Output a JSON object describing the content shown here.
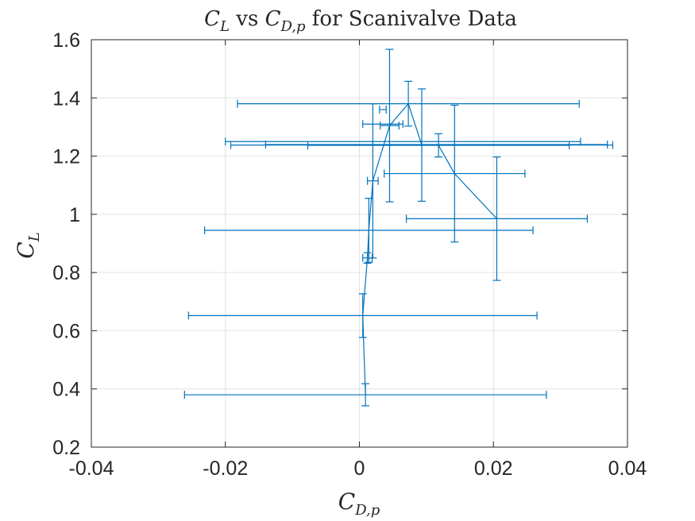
{
  "chart_data": {
    "type": "scatter",
    "title": {
      "var": "C",
      "var_sub": "L",
      "mid": " vs ",
      "var2": "C",
      "var2_sub": "D,p",
      "rest": " for Scanivalve Data"
    },
    "xlabel": {
      "var": "C",
      "sub": "D,p"
    },
    "ylabel": {
      "var": "C",
      "sub": "L"
    },
    "xlim": [
      -0.04,
      0.04
    ],
    "ylim": [
      0.2,
      1.6
    ],
    "xticks": [
      -0.04,
      -0.02,
      0,
      0.02,
      0.04
    ],
    "xtick_labels": [
      "-0.04",
      "-0.02",
      "0",
      "0.02",
      "0.04"
    ],
    "yticks": [
      0.2,
      0.4,
      0.6,
      0.8,
      1.0,
      1.2,
      1.4,
      1.6
    ],
    "ytick_labels": [
      "0.2",
      "0.4",
      "0.6",
      "0.8",
      "1",
      "1.2",
      "1.4",
      "1.6"
    ],
    "grid": true,
    "line_color": "#0072bd",
    "points": [
      {
        "x": 0.0009,
        "y": 0.38,
        "yerr": 0.038,
        "xerr": 0.027
      },
      {
        "x": 0.0005,
        "y": 0.652,
        "yerr": 0.075,
        "xerr": 0.026
      },
      {
        "x": 0.0012,
        "y": 0.85,
        "yerr": 0.018,
        "xerr": 0.0007
      },
      {
        "x": 0.0014,
        "y": 0.945,
        "yerr": 0.11,
        "xerr": 0.0245
      },
      {
        "x": 0.002,
        "y": 1.115,
        "yerr": 0.265,
        "xerr": 0.0008
      },
      {
        "x": 0.0045,
        "y": 1.305,
        "yerr": 0.262,
        "xerr": 0.0014
      },
      {
        "x": 0.0073,
        "y": 1.38,
        "yerr": 0.077,
        "xerr": 0.0255
      },
      {
        "x": 0.0093,
        "y": 1.238,
        "yerr": 0.193,
        "xerr": 0.0285
      },
      {
        "x": 0.0118,
        "y": 1.237,
        "yerr": 0.04,
        "xerr": 0.0195
      },
      {
        "x": 0.0142,
        "y": 1.14,
        "yerr": 0.235,
        "xerr": 0.0105
      },
      {
        "x": 0.0205,
        "y": 0.985,
        "yerr": 0.212,
        "xerr": 0.0135
      }
    ],
    "extra_hbars": [
      {
        "x": 0.0065,
        "y": 1.25,
        "xerr": 0.0265
      },
      {
        "x": 0.0115,
        "y": 1.24,
        "xerr": 0.0255
      },
      {
        "x": 0.0035,
        "y": 1.31,
        "xerr": 0.003
      },
      {
        "x": 0.0035,
        "y": 1.36,
        "xerr": 0.0005
      }
    ]
  }
}
